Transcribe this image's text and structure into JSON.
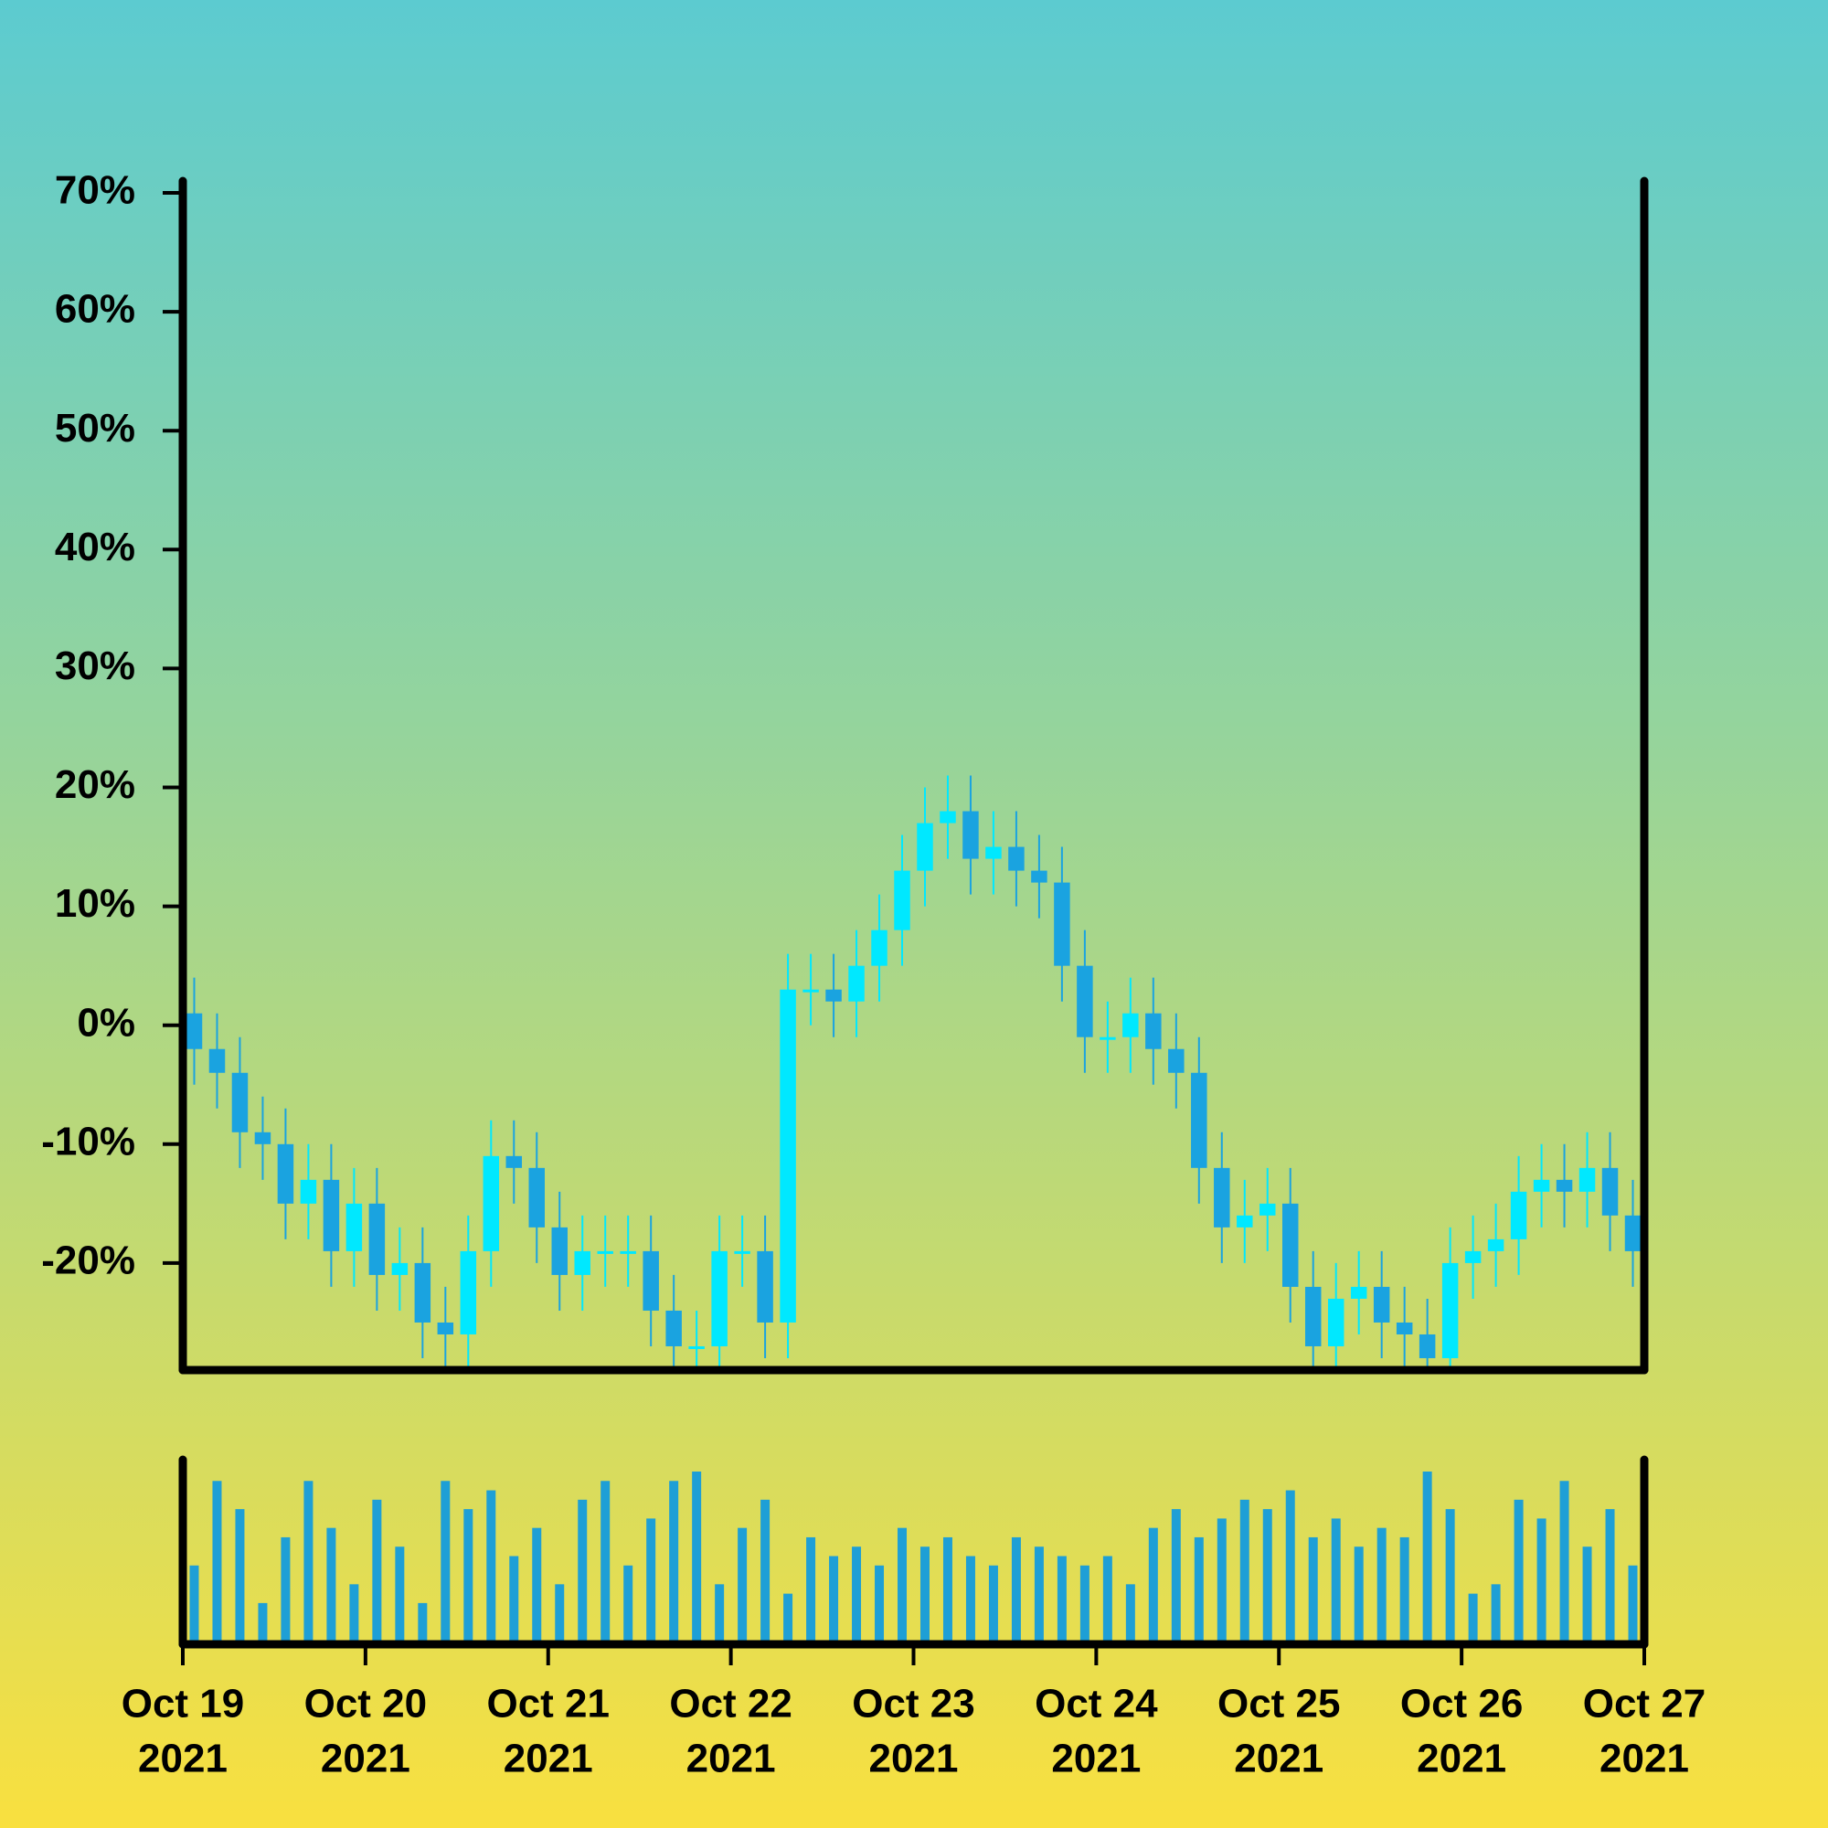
{
  "chart_data": {
    "type": "candlestick",
    "open": [
      1,
      -2,
      -4,
      -9,
      -10,
      -15,
      -13,
      -19,
      -15,
      -21,
      -20,
      -25,
      -26,
      -19,
      -11,
      -12,
      -17,
      -21,
      -19,
      -19,
      -19,
      -24,
      -27,
      -27,
      -19,
      -19,
      -25,
      3,
      3,
      2,
      5,
      8,
      13,
      17,
      18,
      14,
      15,
      13,
      12,
      5,
      -1,
      -1,
      1,
      -2,
      -4,
      -12,
      -17,
      -16,
      -15,
      -22,
      -27,
      -23,
      -22,
      -25,
      -26,
      -28,
      -20,
      -19,
      -18,
      -14,
      -13,
      -14,
      -12,
      -16
    ],
    "high": [
      4,
      1,
      -1,
      -6,
      -7,
      -10,
      -10,
      -12,
      -12,
      -17,
      -17,
      -22,
      -16,
      -8,
      -8,
      -9,
      -14,
      -16,
      -16,
      -16,
      -16,
      -21,
      -24,
      -16,
      -16,
      -16,
      6,
      6,
      6,
      8,
      11,
      16,
      20,
      21,
      21,
      18,
      18,
      16,
      15,
      8,
      2,
      4,
      4,
      1,
      -1,
      -9,
      -13,
      -12,
      -12,
      -19,
      -20,
      -19,
      -19,
      -22,
      -23,
      -17,
      -16,
      -15,
      -11,
      -10,
      -10,
      -9,
      -9,
      -13
    ],
    "low": [
      -5,
      -7,
      -12,
      -13,
      -18,
      -18,
      -22,
      -22,
      -24,
      -24,
      -28,
      -29,
      -29,
      -22,
      -15,
      -20,
      -24,
      -24,
      -22,
      -22,
      -27,
      -30,
      -30,
      -30,
      -22,
      -28,
      -28,
      0,
      -1,
      -1,
      2,
      5,
      10,
      14,
      11,
      11,
      10,
      9,
      2,
      -4,
      -4,
      -4,
      -5,
      -7,
      -15,
      -20,
      -20,
      -19,
      -25,
      -30,
      -30,
      -26,
      -28,
      -29,
      -31,
      -31,
      -23,
      -22,
      -21,
      -17,
      -17,
      -17,
      -19,
      -22
    ],
    "close": [
      -2,
      -4,
      -9,
      -10,
      -15,
      -13,
      -19,
      -15,
      -21,
      -20,
      -25,
      -26,
      -19,
      -11,
      -12,
      -17,
      -21,
      -19,
      -19,
      -19,
      -24,
      -27,
      -27,
      -19,
      -19,
      -25,
      3,
      3,
      2,
      5,
      8,
      13,
      17,
      18,
      14,
      15,
      13,
      12,
      5,
      -1,
      -1,
      1,
      -2,
      -4,
      -12,
      -17,
      -16,
      -15,
      -22,
      -27,
      -23,
      -22,
      -25,
      -26,
      -28,
      -20,
      -19,
      -18,
      -14,
      -13,
      -14,
      -12,
      -16,
      -19
    ],
    "volume": [
      40,
      85,
      70,
      20,
      55,
      85,
      60,
      30,
      75,
      50,
      20,
      85,
      70,
      80,
      45,
      60,
      30,
      75,
      85,
      40,
      65,
      85,
      90,
      30,
      60,
      75,
      25,
      55,
      45,
      50,
      40,
      60,
      50,
      55,
      45,
      40,
      55,
      50,
      45,
      40,
      45,
      30,
      60,
      70,
      55,
      65,
      75,
      70,
      80,
      55,
      65,
      50,
      60,
      55,
      90,
      70,
      25,
      30,
      75,
      65,
      85,
      50,
      70,
      40
    ],
    "up_color": "#00e8ff",
    "down_color": "#1aa3e0",
    "volume_color": "#1e9fd6",
    "ylim": [
      -29,
      71
    ],
    "yticks": [
      {
        "value": -20,
        "label": "-20%"
      },
      {
        "value": -10,
        "label": "-10%"
      },
      {
        "value": 0,
        "label": "0%"
      },
      {
        "value": 10,
        "label": "10%"
      },
      {
        "value": 20,
        "label": "20%"
      },
      {
        "value": 30,
        "label": "30%"
      },
      {
        "value": 40,
        "label": "40%"
      },
      {
        "value": 50,
        "label": "50%"
      },
      {
        "value": 60,
        "label": "60%"
      },
      {
        "value": 70,
        "label": "70%"
      }
    ],
    "xlim": [
      "2021-10-19",
      "2021-10-27"
    ],
    "xticks": [
      {
        "value": "2021-10-19",
        "label": "Oct 19",
        "year": "2021"
      },
      {
        "value": "2021-10-20",
        "label": "Oct 20",
        "year": "2021"
      },
      {
        "value": "2021-10-21",
        "label": "Oct 21",
        "year": "2021"
      },
      {
        "value": "2021-10-22",
        "label": "Oct 22",
        "year": "2021"
      },
      {
        "value": "2021-10-23",
        "label": "Oct 23",
        "year": "2021"
      },
      {
        "value": "2021-10-24",
        "label": "Oct 24",
        "year": "2021"
      },
      {
        "value": "2021-10-25",
        "label": "Oct 25",
        "year": "2021"
      },
      {
        "value": "2021-10-26",
        "label": "Oct 26",
        "year": "2021"
      },
      {
        "value": "2021-10-27",
        "label": "Oct 27",
        "year": "2021"
      }
    ]
  }
}
